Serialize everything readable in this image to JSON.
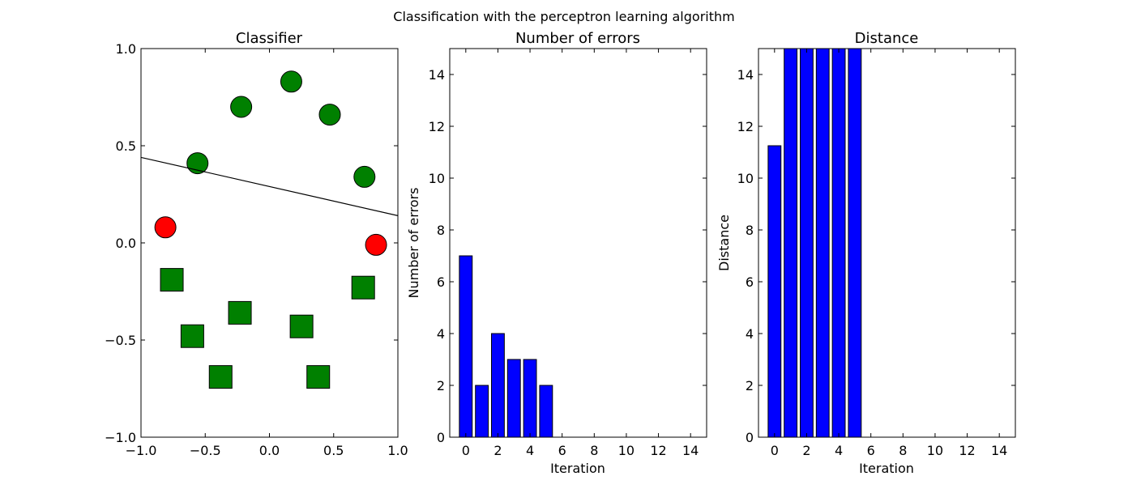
{
  "figure": {
    "suptitle": "Classification with the perceptron learning algorithm"
  },
  "chart_data": [
    {
      "type": "scatter",
      "title": "Classifier",
      "xlabel": "",
      "ylabel": "",
      "xlim": [
        -1.0,
        1.0
      ],
      "ylim": [
        -1.0,
        1.0
      ],
      "xticks": [
        -1.0,
        -0.5,
        0.0,
        0.5,
        1.0
      ],
      "yticks": [
        -1.0,
        -0.5,
        0.0,
        0.5,
        1.0
      ],
      "xtick_labels": [
        "−1.0",
        "−0.5",
        "0.0",
        "0.5",
        "1.0"
      ],
      "ytick_labels": [
        "−1.0",
        "−0.5",
        "0.0",
        "0.5",
        "1.0"
      ],
      "grid": false,
      "series": [
        {
          "marker": "circle",
          "color": "#008000",
          "points": [
            [
              -0.56,
              0.41
            ],
            [
              -0.22,
              0.7
            ],
            [
              0.17,
              0.83
            ],
            [
              0.47,
              0.66
            ],
            [
              0.74,
              0.34
            ]
          ]
        },
        {
          "marker": "circle",
          "color": "#ff0000",
          "points": [
            [
              -0.81,
              0.08
            ],
            [
              0.83,
              -0.01
            ]
          ]
        },
        {
          "marker": "square",
          "color": "#008000",
          "points": [
            [
              -0.76,
              -0.19
            ],
            [
              -0.6,
              -0.48
            ],
            [
              -0.38,
              -0.69
            ],
            [
              -0.23,
              -0.36
            ],
            [
              0.25,
              -0.43
            ],
            [
              0.38,
              -0.69
            ],
            [
              0.73,
              -0.23
            ]
          ]
        }
      ],
      "decision_line": {
        "x": [
          -1.0,
          1.0
        ],
        "y": [
          0.44,
          0.14
        ],
        "color": "#000000"
      }
    },
    {
      "type": "bar",
      "title": "Number of errors",
      "xlabel": "Iteration",
      "ylabel": "Number of errors",
      "xlim": [
        -1,
        15
      ],
      "ylim": [
        0,
        15
      ],
      "xticks": [
        0,
        2,
        4,
        6,
        8,
        10,
        12,
        14
      ],
      "yticks": [
        0,
        2,
        4,
        6,
        8,
        10,
        12,
        14
      ],
      "grid": false,
      "bar_color": "#0000ff",
      "x": [
        0,
        1,
        2,
        3,
        4,
        5
      ],
      "values": [
        7,
        2,
        4,
        3,
        3,
        2
      ]
    },
    {
      "type": "bar",
      "title": "Distance",
      "xlabel": "Iteration",
      "ylabel": "Distance",
      "xlim": [
        -1,
        15
      ],
      "ylim": [
        0,
        15
      ],
      "xticks": [
        0,
        2,
        4,
        6,
        8,
        10,
        12,
        14
      ],
      "yticks": [
        0,
        2,
        4,
        6,
        8,
        10,
        12,
        14
      ],
      "grid": false,
      "bar_color": "#0000ff",
      "x": [
        0,
        1,
        2,
        3,
        4,
        5
      ],
      "values": [
        11.25,
        15,
        15,
        15,
        15,
        15
      ]
    }
  ]
}
